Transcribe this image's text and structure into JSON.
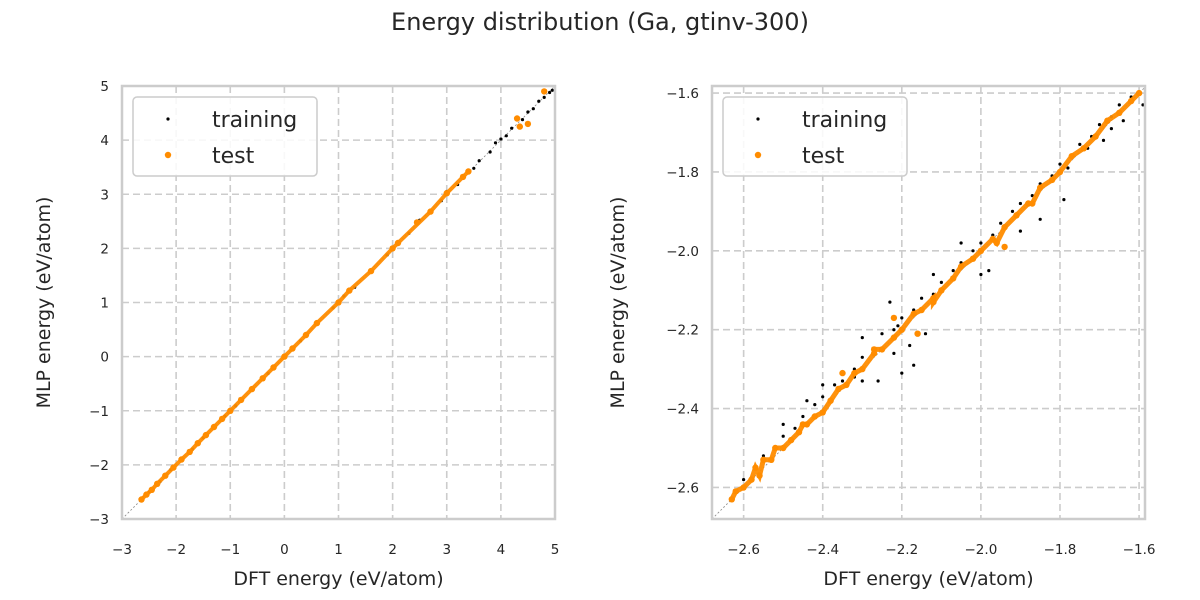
{
  "figure": {
    "title": "Energy distribution (Ga, gtinv-300)"
  },
  "colors": {
    "training": "#000000",
    "test": "#ff8c00",
    "grid": "#cccccc",
    "frame": "#cccccc",
    "diagonal": "#888888"
  },
  "chart_data": [
    {
      "type": "scatter",
      "title": "",
      "xlabel": "DFT energy (eV/atom)",
      "ylabel": "MLP energy (eV/atom)",
      "xlim": [
        -3,
        5
      ],
      "ylim": [
        -3,
        5
      ],
      "xticks": [
        "−3",
        "−2",
        "−1",
        "0",
        "1",
        "2",
        "3",
        "4",
        "5"
      ],
      "xtick_values": [
        -3,
        -2,
        -1,
        0,
        1,
        2,
        3,
        4,
        5
      ],
      "yticks": [
        "−3",
        "−2",
        "−1",
        "0",
        "1",
        "2",
        "3",
        "4",
        "5"
      ],
      "ytick_values": [
        -3,
        -2,
        -1,
        0,
        1,
        2,
        3,
        4,
        5
      ],
      "grid": true,
      "legend": {
        "placement": "top-left",
        "entries": [
          "training",
          "test"
        ]
      },
      "diagonal": [
        [
          -3,
          -3
        ],
        [
          5,
          5
        ]
      ],
      "series": [
        {
          "name": "training",
          "points": [
            [
              -2.62,
              -2.61
            ],
            [
              -2.5,
              -2.5
            ],
            [
              -2.3,
              -2.31
            ],
            [
              -2.1,
              -2.09
            ],
            [
              -1.9,
              -1.9
            ],
            [
              -1.7,
              -1.71
            ],
            [
              -1.5,
              -1.5
            ],
            [
              -1.3,
              -1.29
            ],
            [
              -1.1,
              -1.1
            ],
            [
              -0.9,
              -0.91
            ],
            [
              -0.6,
              -0.6
            ],
            [
              -0.3,
              -0.31
            ],
            [
              0.0,
              0.02
            ],
            [
              0.3,
              0.29
            ],
            [
              0.6,
              0.61
            ],
            [
              0.9,
              0.9
            ],
            [
              1.1,
              1.12
            ],
            [
              1.3,
              1.28
            ],
            [
              1.6,
              1.6
            ],
            [
              1.9,
              1.88
            ],
            [
              2.1,
              2.12
            ],
            [
              2.3,
              2.28
            ],
            [
              2.5,
              2.52
            ],
            [
              2.7,
              2.7
            ],
            [
              2.9,
              2.88
            ],
            [
              3.0,
              3.05
            ],
            [
              3.2,
              3.18
            ],
            [
              3.3,
              3.34
            ],
            [
              3.5,
              3.48
            ],
            [
              3.6,
              3.62
            ],
            [
              3.8,
              3.78
            ],
            [
              3.9,
              3.95
            ],
            [
              4.0,
              4.02
            ],
            [
              4.1,
              4.08
            ],
            [
              4.2,
              4.22
            ],
            [
              4.4,
              4.38
            ],
            [
              4.5,
              4.52
            ],
            [
              4.6,
              4.58
            ],
            [
              4.7,
              4.72
            ],
            [
              4.8,
              4.79
            ],
            [
              4.9,
              4.88
            ],
            [
              4.95,
              4.92
            ]
          ]
        },
        {
          "name": "test",
          "points": [
            [
              -2.64,
              -2.64
            ],
            [
              -2.55,
              -2.55
            ],
            [
              -2.45,
              -2.46
            ],
            [
              -2.35,
              -2.35
            ],
            [
              -2.2,
              -2.2
            ],
            [
              -2.05,
              -2.05
            ],
            [
              -1.9,
              -1.9
            ],
            [
              -1.75,
              -1.76
            ],
            [
              -1.6,
              -1.6
            ],
            [
              -1.45,
              -1.45
            ],
            [
              -1.3,
              -1.3
            ],
            [
              -1.15,
              -1.15
            ],
            [
              -1.0,
              -1.0
            ],
            [
              -0.8,
              -0.8
            ],
            [
              -0.6,
              -0.6
            ],
            [
              -0.4,
              -0.4
            ],
            [
              -0.2,
              -0.2
            ],
            [
              0.0,
              0.0
            ],
            [
              0.15,
              0.15
            ],
            [
              0.4,
              0.4
            ],
            [
              0.6,
              0.62
            ],
            [
              1.0,
              1.0
            ],
            [
              1.2,
              1.22
            ],
            [
              1.6,
              1.58
            ],
            [
              2.0,
              2.0
            ],
            [
              2.1,
              2.1
            ],
            [
              2.45,
              2.48
            ],
            [
              2.7,
              2.68
            ],
            [
              3.0,
              3.02
            ],
            [
              3.3,
              3.32
            ],
            [
              3.4,
              3.42
            ],
            [
              4.3,
              4.4
            ],
            [
              4.35,
              4.25
            ],
            [
              4.5,
              4.3
            ],
            [
              4.8,
              4.9
            ]
          ]
        }
      ]
    },
    {
      "type": "scatter",
      "title": "",
      "xlabel": "DFT energy (eV/atom)",
      "ylabel": "MLP energy (eV/atom)",
      "xlim": [
        -2.68,
        -1.585
      ],
      "ylim": [
        -2.68,
        -1.582
      ],
      "xticks": [
        "−2.6",
        "−2.4",
        "−2.2",
        "−2.0",
        "−1.8",
        "−1.6"
      ],
      "xtick_values": [
        -2.6,
        -2.4,
        -2.2,
        -2.0,
        -1.8,
        -1.6
      ],
      "yticks": [
        "−2.6",
        "−2.4",
        "−2.2",
        "−2.0",
        "−1.8",
        "−1.6"
      ],
      "ytick_values": [
        -2.6,
        -2.4,
        -2.2,
        -2.0,
        -1.8,
        -1.6
      ],
      "grid": true,
      "legend": {
        "placement": "top-left",
        "entries": [
          "training",
          "test"
        ]
      },
      "diagonal": [
        [
          -2.68,
          -2.68
        ],
        [
          -1.585,
          -1.585
        ]
      ],
      "series": [
        {
          "name": "training",
          "points": [
            [
              -2.6,
              -2.58
            ],
            [
              -2.57,
              -2.55
            ],
            [
              -2.55,
              -2.52
            ],
            [
              -2.52,
              -2.5
            ],
            [
              -2.5,
              -2.47
            ],
            [
              -2.47,
              -2.45
            ],
            [
              -2.45,
              -2.42
            ],
            [
              -2.42,
              -2.39
            ],
            [
              -2.4,
              -2.37
            ],
            [
              -2.37,
              -2.34
            ],
            [
              -2.35,
              -2.33
            ],
            [
              -2.32,
              -2.3
            ],
            [
              -2.3,
              -2.27
            ],
            [
              -2.27,
              -2.25
            ],
            [
              -2.25,
              -2.21
            ],
            [
              -2.22,
              -2.2
            ],
            [
              -2.2,
              -2.17
            ],
            [
              -2.17,
              -2.15
            ],
            [
              -2.15,
              -2.12
            ],
            [
              -2.12,
              -2.11
            ],
            [
              -2.1,
              -2.08
            ],
            [
              -2.07,
              -2.05
            ],
            [
              -2.05,
              -2.03
            ],
            [
              -2.02,
              -2.0
            ],
            [
              -2.0,
              -1.98
            ],
            [
              -1.97,
              -1.96
            ],
            [
              -1.95,
              -1.93
            ],
            [
              -1.92,
              -1.9
            ],
            [
              -1.9,
              -1.88
            ],
            [
              -1.87,
              -1.86
            ],
            [
              -1.85,
              -1.83
            ],
            [
              -1.82,
              -1.81
            ],
            [
              -1.8,
              -1.78
            ],
            [
              -1.77,
              -1.76
            ],
            [
              -1.75,
              -1.73
            ],
            [
              -1.72,
              -1.71
            ],
            [
              -1.7,
              -1.68
            ],
            [
              -1.67,
              -1.66
            ],
            [
              -1.65,
              -1.63
            ],
            [
              -1.62,
              -1.61
            ],
            [
              -1.6,
              -1.6
            ],
            [
              -2.32,
              -2.32
            ],
            [
              -2.3,
              -2.33
            ],
            [
              -2.22,
              -2.26
            ],
            [
              -2.18,
              -2.24
            ],
            [
              -2.14,
              -2.21
            ],
            [
              -2.17,
              -2.29
            ],
            [
              -2.2,
              -2.31
            ],
            [
              -2.0,
              -2.06
            ],
            [
              -1.98,
              -2.05
            ],
            [
              -1.9,
              -1.95
            ],
            [
              -1.85,
              -1.92
            ],
            [
              -1.78,
              -1.79
            ],
            [
              -1.73,
              -1.74
            ],
            [
              -1.79,
              -1.87
            ],
            [
              -1.69,
              -1.72
            ],
            [
              -1.64,
              -1.67
            ],
            [
              -1.59,
              -1.63
            ],
            [
              -1.67,
              -1.69
            ],
            [
              -2.05,
              -1.98
            ],
            [
              -2.12,
              -2.06
            ],
            [
              -2.23,
              -2.13
            ],
            [
              -2.3,
              -2.22
            ],
            [
              -2.4,
              -2.34
            ],
            [
              -2.5,
              -2.44
            ],
            [
              -2.44,
              -2.38
            ],
            [
              -2.26,
              -2.33
            ],
            [
              -2.21,
              -2.19
            ]
          ]
        },
        {
          "name": "test",
          "points": [
            [
              -2.63,
              -2.63
            ],
            [
              -2.62,
              -2.61
            ],
            [
              -2.6,
              -2.6
            ],
            [
              -2.58,
              -2.58
            ],
            [
              -2.56,
              -2.57
            ],
            [
              -2.55,
              -2.53
            ],
            [
              -2.53,
              -2.53
            ],
            [
              -2.5,
              -2.5
            ],
            [
              -2.48,
              -2.48
            ],
            [
              -2.46,
              -2.46
            ],
            [
              -2.44,
              -2.44
            ],
            [
              -2.42,
              -2.42
            ],
            [
              -2.4,
              -2.41
            ],
            [
              -2.38,
              -2.38
            ],
            [
              -2.36,
              -2.35
            ],
            [
              -2.34,
              -2.34
            ],
            [
              -2.32,
              -2.31
            ],
            [
              -2.3,
              -2.3
            ],
            [
              -2.27,
              -2.26
            ],
            [
              -2.25,
              -2.25
            ],
            [
              -2.22,
              -2.22
            ],
            [
              -2.2,
              -2.2
            ],
            [
              -2.17,
              -2.16
            ],
            [
              -2.15,
              -2.15
            ],
            [
              -2.12,
              -2.12
            ],
            [
              -2.1,
              -2.1
            ],
            [
              -2.07,
              -2.07
            ],
            [
              -2.05,
              -2.04
            ],
            [
              -2.02,
              -2.02
            ],
            [
              -2.0,
              -2.0
            ],
            [
              -1.97,
              -1.97
            ],
            [
              -1.94,
              -1.94
            ],
            [
              -1.91,
              -1.91
            ],
            [
              -1.88,
              -1.88
            ],
            [
              -1.85,
              -1.84
            ],
            [
              -1.82,
              -1.82
            ],
            [
              -1.8,
              -1.8
            ],
            [
              -1.77,
              -1.76
            ],
            [
              -1.74,
              -1.74
            ],
            [
              -1.71,
              -1.71
            ],
            [
              -1.68,
              -1.67
            ],
            [
              -1.65,
              -1.65
            ],
            [
              -1.62,
              -1.62
            ],
            [
              -1.6,
              -1.6
            ],
            [
              -2.22,
              -2.17
            ],
            [
              -2.16,
              -2.21
            ],
            [
              -2.27,
              -2.25
            ],
            [
              -2.35,
              -2.31
            ],
            [
              -2.12,
              -2.13
            ],
            [
              -1.96,
              -1.98
            ],
            [
              -1.94,
              -1.99
            ],
            [
              -1.87,
              -1.88
            ],
            [
              -2.45,
              -2.44
            ],
            [
              -2.52,
              -2.5
            ],
            [
              -2.57,
              -2.55
            ]
          ]
        }
      ]
    }
  ]
}
